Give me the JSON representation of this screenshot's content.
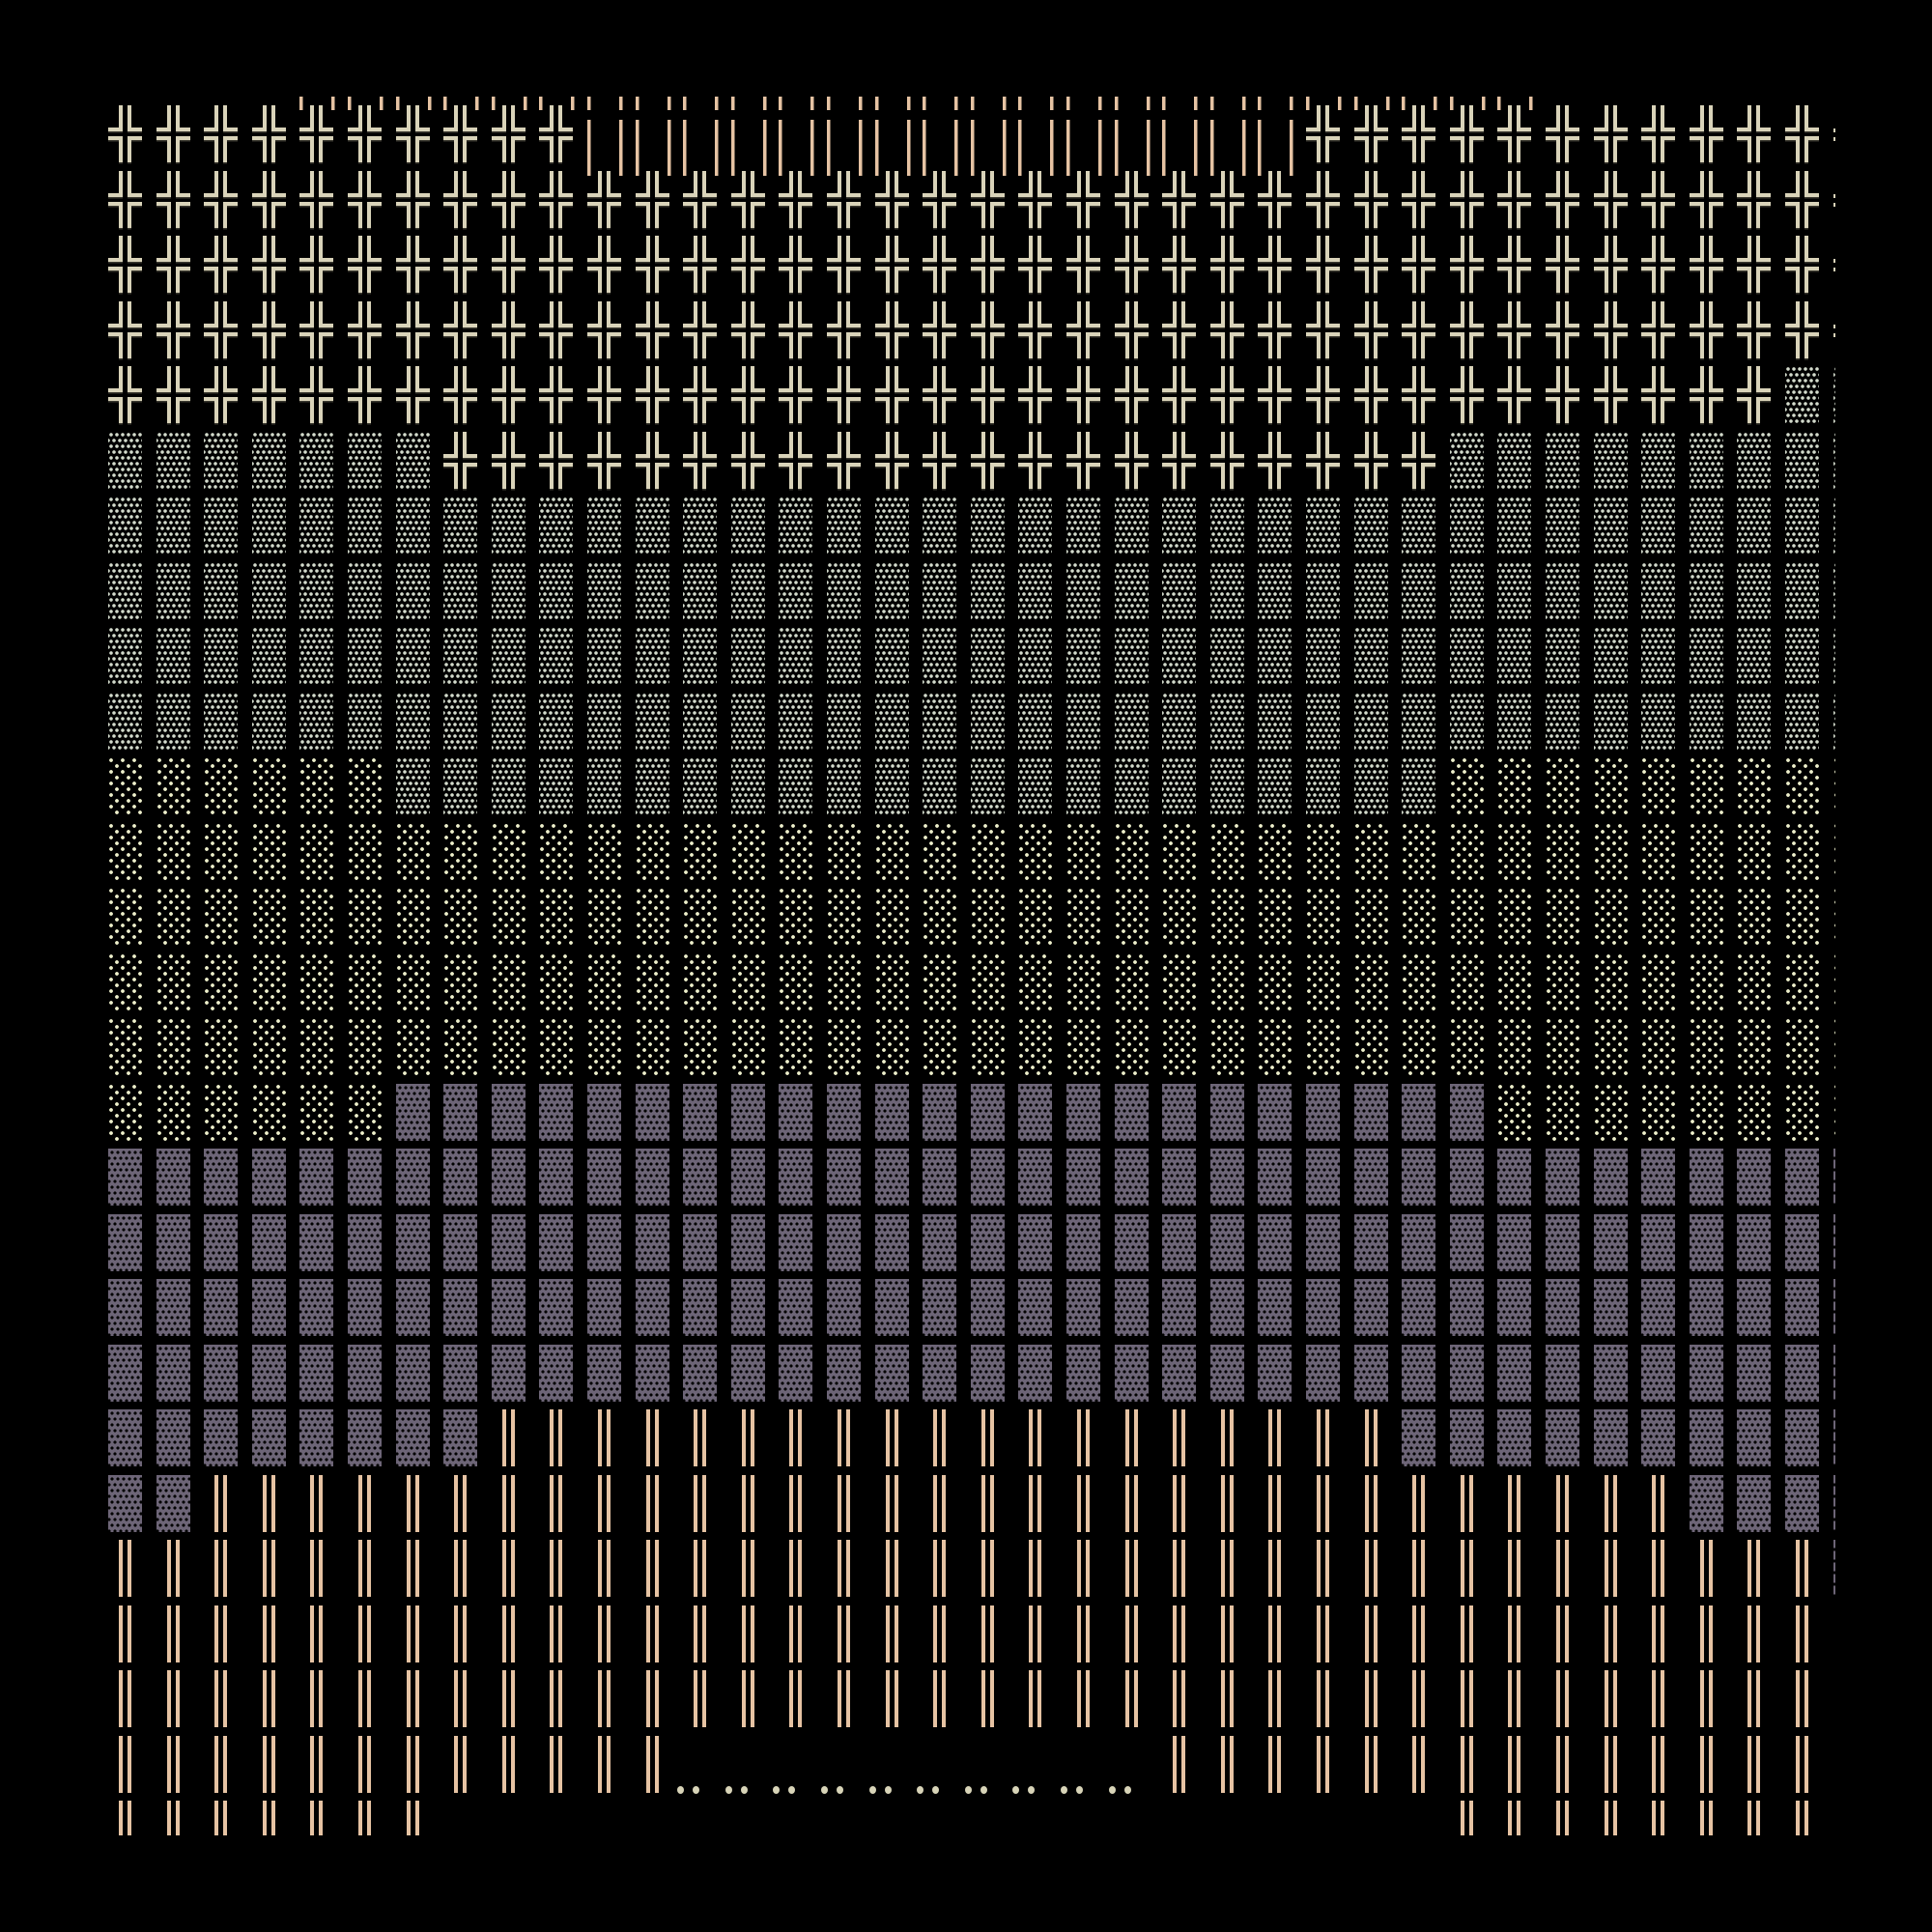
{
  "colors": {
    "background": "#000000",
    "cross": "#d9d3b9",
    "peach": "#e6c3a3",
    "medium_shade": "#d3dbcc",
    "light_shade": "#eef0cc",
    "dark_shade": "#6d6577",
    "dots": "#d8d4b8"
  },
  "glyphs": {
    "╬": "double-cross",
    "¦": "peach-broken-double-bar",
    "║": "peach-double-vertical",
    "░": "light-shade",
    "▒": "medium-shade",
    "▓": "dark-shade",
    "‥": "two-dot-leader",
    ":": "colon"
  },
  "overhang_ticks": "    ''''''               '''''      ",
  "rows": [
    "╬╬╬╬╬╬╬╬╬╬¦¦¦¦¦¦¦¦¦¦¦¦¦¦¦╬╬╬╬╬╬╬╬╬╬╬:",
    "╬╬╬╬╬╬╬╬╬╬╬╬╬╬╬╬╬╬╬╬╬╬╬╬╬╬╬╬╬╬╬╬╬╬╬╬:",
    "╬╬╬╬╬╬╬╬╬╬╬╬╬╬╬╬╬╬╬╬╬╬╬╬╬╬╬╬╬╬╬╬╬╬╬╬:",
    "╬╬╬╬╬╬╬╬╬╬╬╬╬╬╬╬╬╬╬╬╬╬╬╬╬╬╬╬╬╬╬╬╬╬╬╬:",
    "╬╬╬╬╬╬╬╬╬╬╬╬╬╬╬╬╬╬╬╬╬╬╬╬╬╬╬╬╬╬╬╬╬╬╬▒▒",
    "▒▒▒▒▒▒▒╬╬╬╬╬╬╬╬╬╬╬╬╬╬╬╬╬╬╬╬╬▒▒▒▒▒▒▒▒▒",
    "▒▒▒▒▒▒▒▒▒▒▒▒▒▒▒▒▒▒▒▒▒▒▒▒▒▒▒▒▒▒▒▒▒▒▒▒▒",
    "▒▒▒▒▒▒▒▒▒▒▒▒▒▒▒▒▒▒▒▒▒▒▒▒▒▒▒▒▒▒▒▒▒▒▒▒▒",
    "▒▒▒▒▒▒▒▒▒▒▒▒▒▒▒▒▒▒▒▒▒▒▒▒▒▒▒▒▒▒▒▒▒▒▒▒▒",
    "▒▒▒▒▒▒▒▒▒▒▒▒▒▒▒▒▒▒▒▒▒▒▒▒▒▒▒▒▒▒▒▒▒▒▒▒▒",
    "░░░░░░▒▒▒▒▒▒▒▒▒▒▒▒▒▒▒▒▒▒▒▒▒▒░░░░░░░░░",
    "░░░░░░░░░░░░░░░░░░░░░░░░░░░░░░░░░░░░░",
    "░░░░░░░░░░░░░░░░░░░░░░░░░░░░░░░░░░░░░",
    "░░░░░░░░░░░░░░░░░░░░░░░░░░░░░░░░░░░░░",
    "░░░░░░░░░░░░░░░░░░░░░░░░░░░░░░░░░░░░░",
    "░░░░░░▓▓▓▓▓▓▓▓▓▓▓▓▓▓▓▓▓▓▓▓▓▓▓░░░░░░░░",
    "▓▓▓▓▓▓▓▓▓▓▓▓▓▓▓▓▓▓▓▓▓▓▓▓▓▓▓▓▓▓▓▓▓▓▓▓▓",
    "▓▓▓▓▓▓▓▓▓▓▓▓▓▓▓▓▓▓▓▓▓▓▓▓▓▓▓▓▓▓▓▓▓▓▓▓▓",
    "▓▓▓▓▓▓▓▓▓▓▓▓▓▓▓▓▓▓▓▓▓▓▓▓▓▓▓▓▓▓▓▓▓▓▓▓▓",
    "▓▓▓▓▓▓▓▓▓▓▓▓▓▓▓▓▓▓▓▓▓▓▓▓▓▓▓▓▓▓▓▓▓▓▓▓▓",
    "▓▓▓▓▓▓▓▓║║║║║║║║║║║║║║║║║║║▓▓▓▓▓▓▓▓▓▓",
    "▓▓║║║║║║║║║║║║║║║║║║║║║║║║║║║║║║║▓▓▓▓",
    "║║║║║║║║║║║║║║║║║║║║║║║║║║║║║║║║║║║║▓",
    "║║║║║║║║║║║║║║║║║║║║║║║║║║║║║║║║║║║║ ",
    "║║║║║║║║║║║║║║║║║║║║║║║║║║║║║║║║║║║║ ",
    "║║║║║║║║║║║║‥‥‥‥‥‥‥‥‥‥║║║║║║║║║║║║║║ ",
    "║║║║║║║                     ║║║║║║║║ "
  ]
}
